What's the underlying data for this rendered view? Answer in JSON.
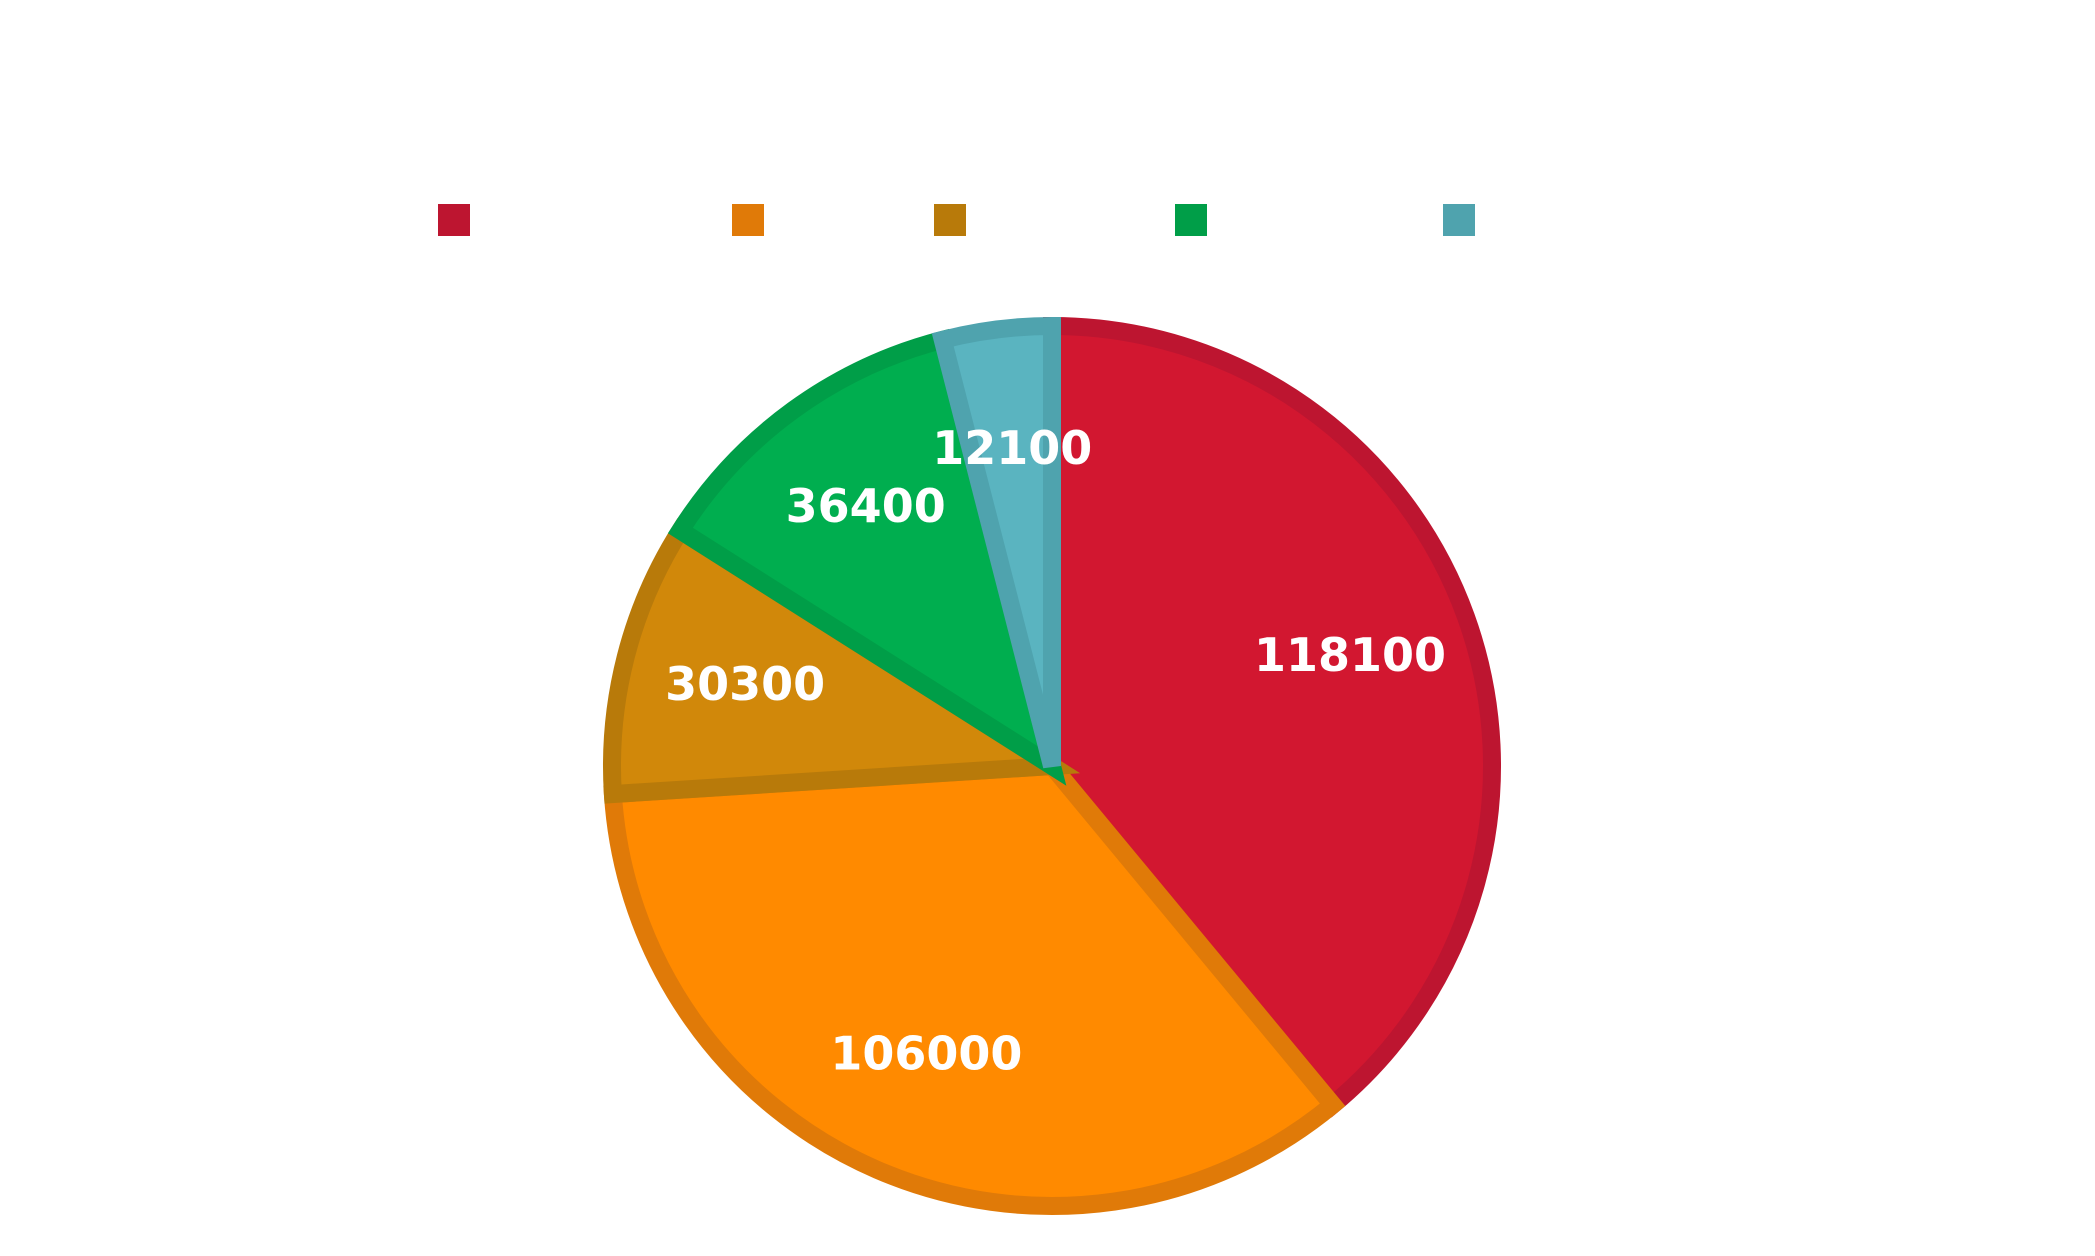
{
  "chart_data": {
    "type": "pie",
    "title": "",
    "legend_position": "top",
    "start_angle_deg": 0,
    "direction": "clockwise",
    "slices": [
      {
        "value": 118100,
        "label": "118100",
        "legend": "",
        "fill": "#D21730",
        "stroke": "#BD1530"
      },
      {
        "value": 106000,
        "label": "106000",
        "legend": "",
        "fill": "#FF8A00",
        "stroke": "#E07A08"
      },
      {
        "value": 30300,
        "label": "30300",
        "legend": "",
        "fill": "#D1880A",
        "stroke": "#B87A0A"
      },
      {
        "value": 36400,
        "label": "36400",
        "legend": "",
        "fill": "#00AE4F",
        "stroke": "#009E48"
      },
      {
        "value": 12100,
        "label": "12100",
        "legend": "",
        "fill": "#5AB4C0",
        "stroke": "#4FA3AE"
      }
    ]
  }
}
